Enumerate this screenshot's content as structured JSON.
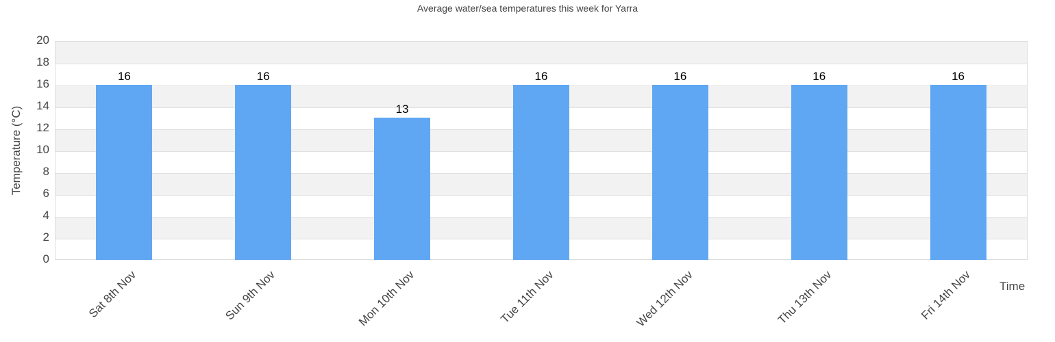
{
  "chart_data": {
    "type": "bar",
    "title": "Average water/sea temperatures this week for Yarra",
    "xlabel": "Time",
    "ylabel": "Temperature (°C)",
    "ylim": [
      0,
      20
    ],
    "yticks": [
      "0",
      "2",
      "4",
      "6",
      "8",
      "10",
      "12",
      "14",
      "16",
      "18",
      "20"
    ],
    "categories": [
      "Sat 8th Nov",
      "Sun 9th Nov",
      "Mon 10th Nov",
      "Tue 11th Nov",
      "Wed 12th Nov",
      "Thu 13th Nov",
      "Fri 14th Nov"
    ],
    "values": [
      16,
      16,
      13,
      16,
      16,
      16,
      16
    ],
    "data_labels": [
      "16",
      "16",
      "13",
      "16",
      "16",
      "16",
      "16"
    ],
    "bar_color": "#60a7f3",
    "grid": true,
    "legend": null
  }
}
